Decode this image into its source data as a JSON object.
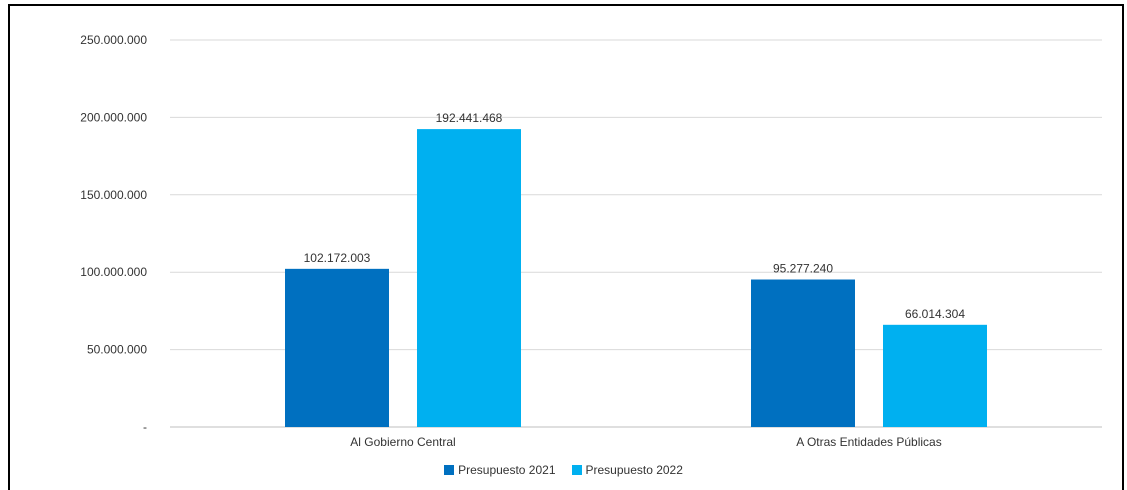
{
  "chart_data": {
    "type": "bar",
    "title": "",
    "xlabel": "",
    "ylabel": "",
    "categories": [
      "Al Gobierno Central",
      "A Otras Entidades Públicas"
    ],
    "series": [
      {
        "name": "Presupuesto 2021",
        "values": [
          102172003,
          95277240
        ],
        "value_labels": [
          "102.172.003",
          "95.277.240"
        ],
        "color": "#0070c0"
      },
      {
        "name": "Presupuesto 2022",
        "values": [
          192441468,
          66014304
        ],
        "value_labels": [
          "192.441.468",
          "66.014.304"
        ],
        "color": "#00b0f0"
      }
    ],
    "ylim": [
      0,
      250000000
    ],
    "y_ticks": [
      0,
      50000000,
      100000000,
      150000000,
      200000000,
      250000000
    ],
    "y_tick_labels": [
      "-",
      "50.000.000",
      "100.000.000",
      "150.000.000",
      "200.000.000",
      "250.000.000"
    ],
    "grid": true,
    "legend_position": "bottom-center"
  }
}
